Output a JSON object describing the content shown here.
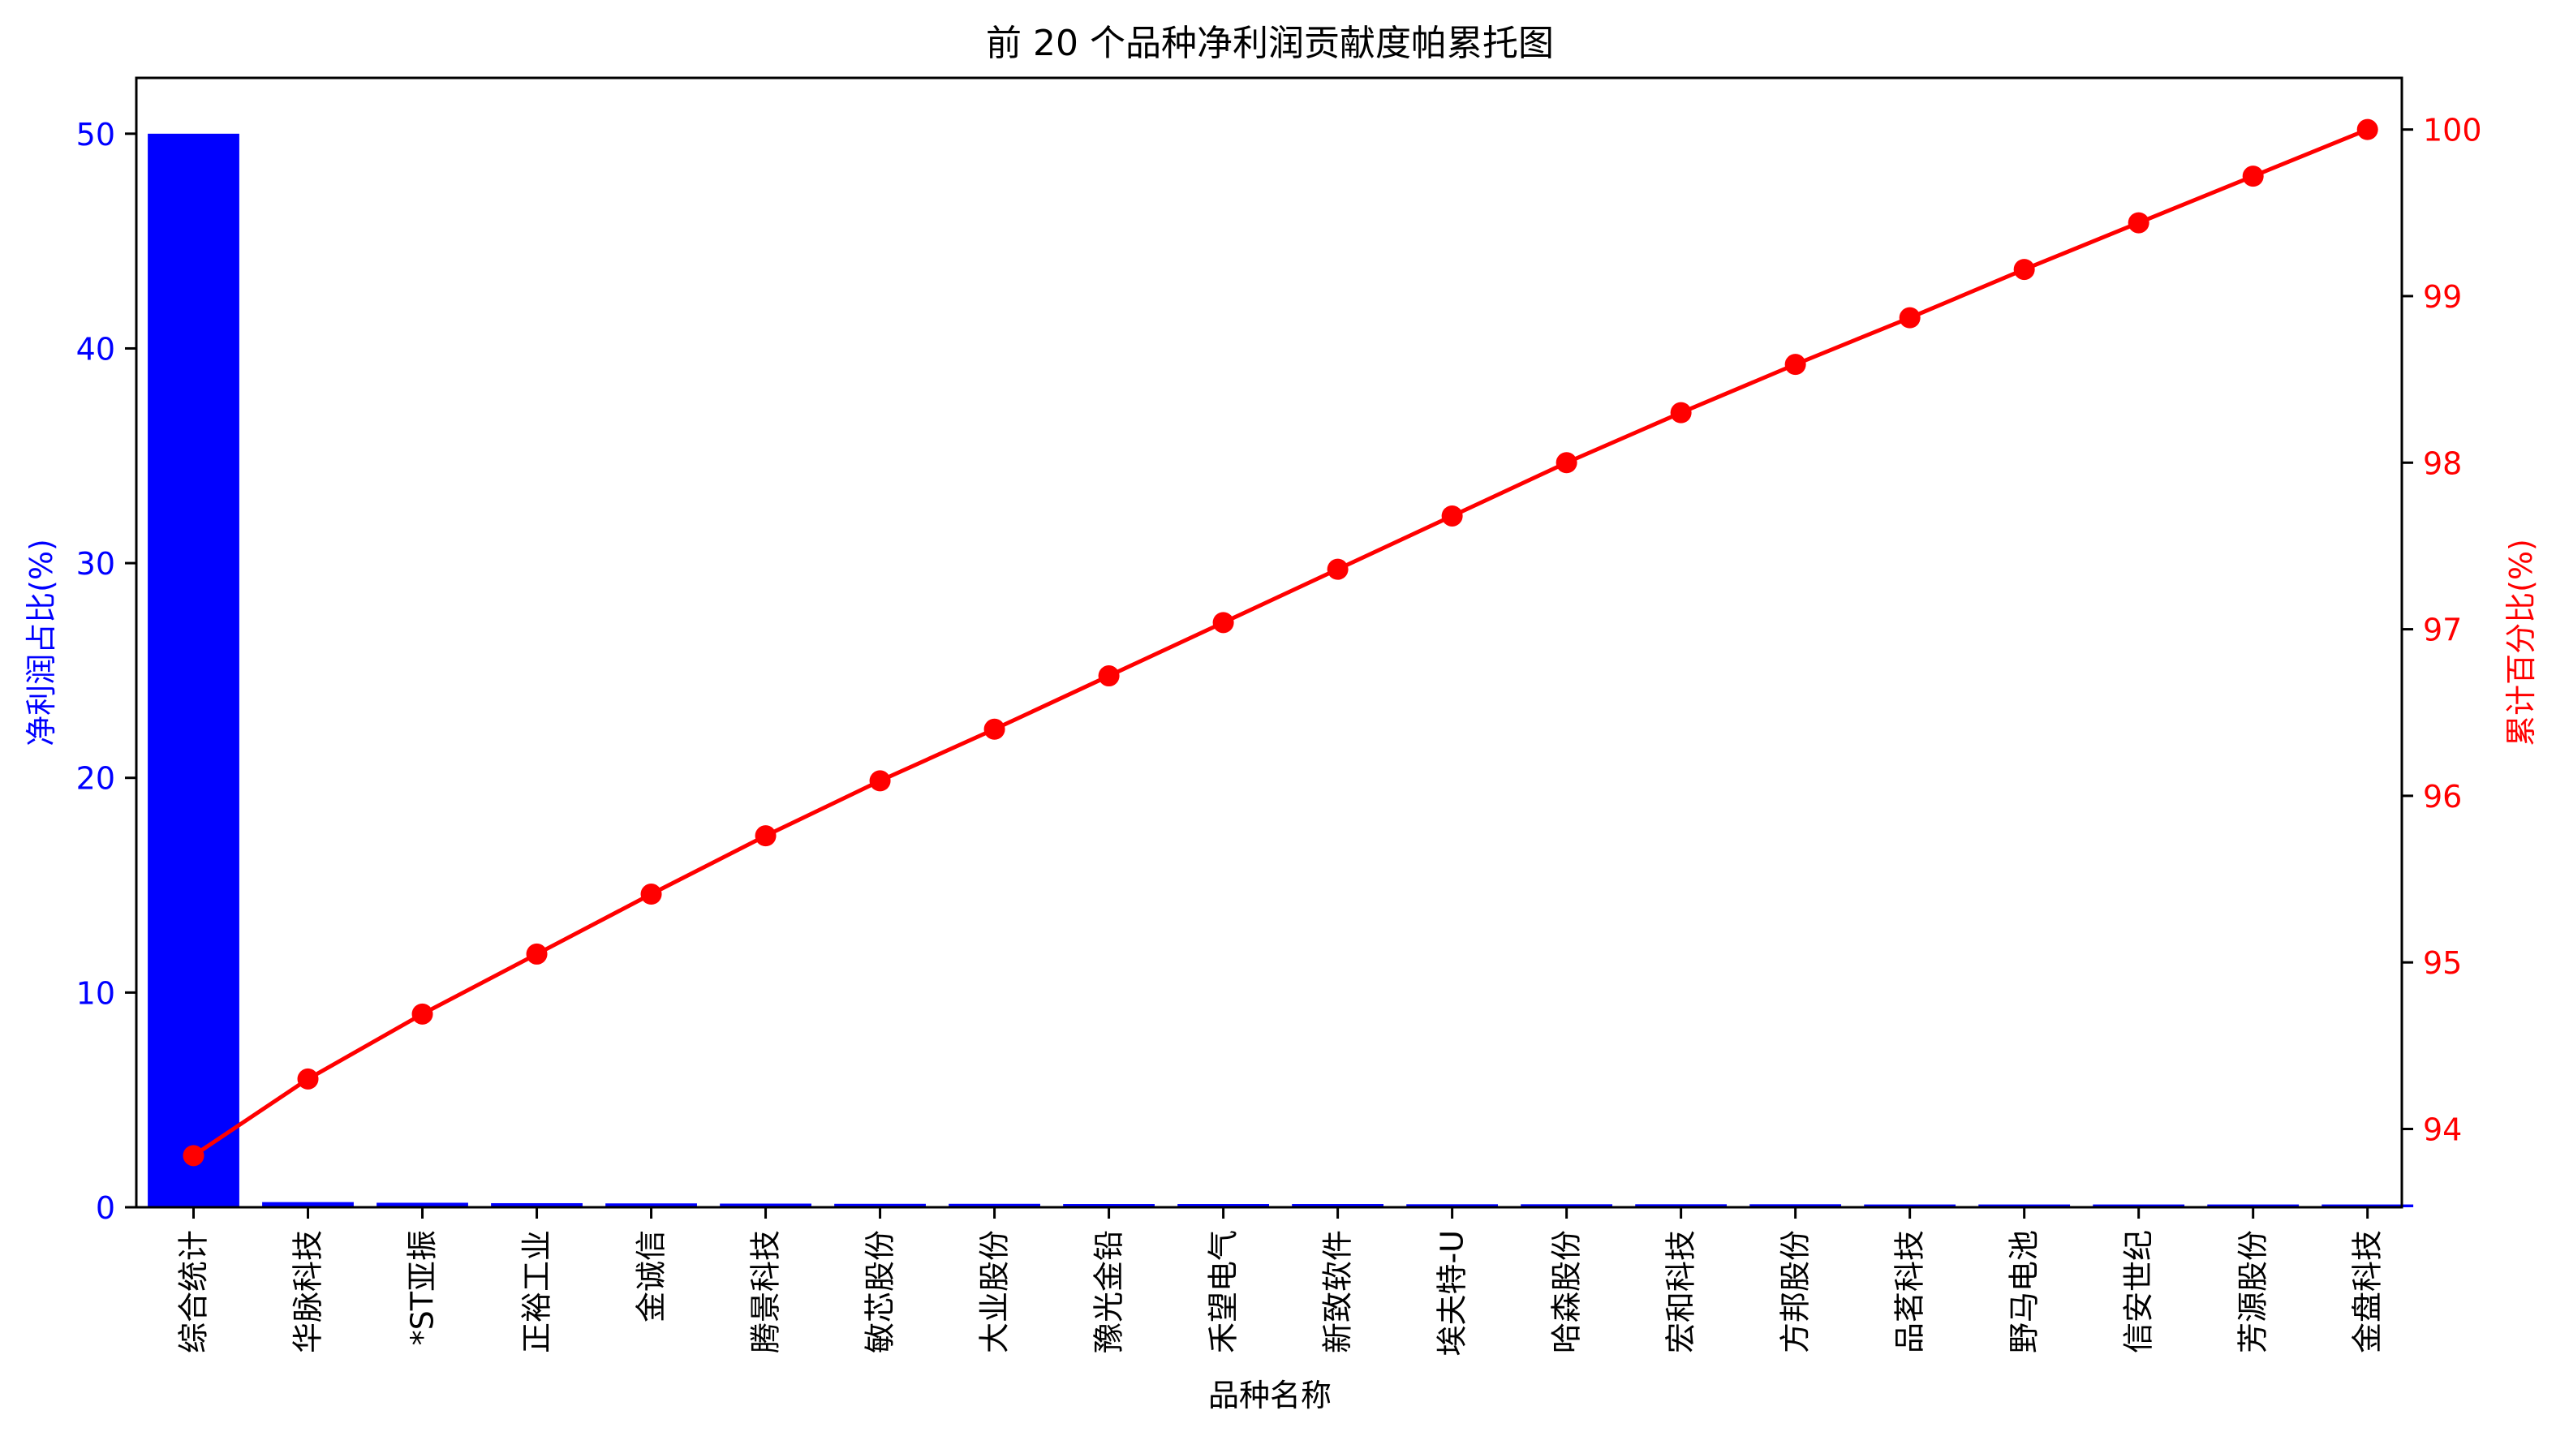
{
  "chart_data": {
    "type": "bar",
    "title": "前 20 个品种净利润贡献度帕累托图",
    "xlabel": "品种名称",
    "ylabel": "净利润占比(%)",
    "y2label": "累计百分比(%)",
    "ylim": [
      0,
      52.6
    ],
    "y2lim": [
      93.53,
      100.31
    ],
    "yticks": [
      0,
      10,
      20,
      30,
      40,
      50
    ],
    "y2ticks": [
      94,
      95,
      96,
      97,
      98,
      99,
      100
    ],
    "categories": [
      "综合统计",
      "华脉科技",
      "*ST亚振",
      "正裕工业",
      "金诚信",
      "腾景科技",
      "敏芯股份",
      "大业股份",
      "豫光金铅",
      "禾望电气",
      "新致软件",
      "埃夫特-U",
      "哈森股份",
      "宏和科技",
      "方邦股份",
      "品茗科技",
      "野马电池",
      "信安世纪",
      "芳源股份",
      "金盘科技"
    ],
    "series": [
      {
        "axis": "left",
        "mark": "bar",
        "color": "#0000ff",
        "values": [
          50.0,
          0.24,
          0.21,
          0.19,
          0.18,
          0.17,
          0.16,
          0.16,
          0.15,
          0.15,
          0.15,
          0.14,
          0.14,
          0.14,
          0.14,
          0.13,
          0.13,
          0.13,
          0.13,
          0.13
        ]
      },
      {
        "axis": "right",
        "mark": "line",
        "color": "#ff0000",
        "values": [
          93.84,
          94.3,
          94.69,
          95.05,
          95.41,
          95.76,
          96.09,
          96.4,
          96.72,
          97.04,
          97.36,
          97.68,
          98.0,
          98.3,
          98.59,
          98.87,
          99.16,
          99.44,
          99.72,
          100.0
        ]
      }
    ],
    "grid": false,
    "colors": {
      "left_axis": "#0000ff",
      "right_axis": "#ff0000",
      "frame": "#000000"
    }
  }
}
